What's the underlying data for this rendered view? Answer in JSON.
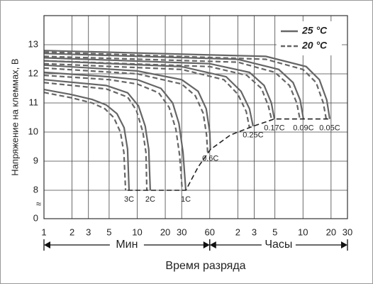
{
  "chart_data": {
    "type": "line",
    "x_label": "Время разряда",
    "y_label": "Напряжение на клеммах, В",
    "xscale": "log",
    "xlim": [
      1,
      1800
    ],
    "xticks": [
      1,
      2,
      3,
      5,
      10,
      20,
      30,
      60,
      {
        "value": 120,
        "label": "2"
      },
      {
        "value": 180,
        "label": "3"
      },
      {
        "value": 300,
        "label": "5"
      },
      {
        "value": 600,
        "label": "10"
      },
      {
        "value": 1200,
        "label": "20"
      },
      {
        "value": 1800,
        "label": "30"
      }
    ],
    "ylim": [
      0,
      14
    ],
    "yticks": [
      0,
      8,
      9,
      10,
      11,
      12,
      13
    ],
    "axis_break_label": "≈",
    "grid": true,
    "legend": "upper right",
    "x_ranges": [
      {
        "label": "Мин",
        "from": 1,
        "to": 60
      },
      {
        "label": "Часы",
        "from": 60,
        "to": 1800
      }
    ],
    "series": [
      {
        "name": "25 °C",
        "style": "solid",
        "color": "#666666",
        "curves": [
          {
            "label": "3C",
            "x": [
              1,
              1.95,
              3.29,
              4.67,
              6.07,
              7.23,
              7.89,
              8.18
            ],
            "values": [
              11.46,
              11.29,
              11.12,
              10.93,
              10.63,
              10.15,
              9.41,
              8.0
            ]
          },
          {
            "label": "2C",
            "x": [
              1,
              4.67,
              7.9,
              10.3,
              12.2,
              13.3,
              13.8
            ],
            "values": [
              11.8,
              11.6,
              11.35,
              10.9,
              10.2,
              9.4,
              8.0
            ]
          },
          {
            "label": "1C",
            "x": [
              1,
              5,
              10,
              18,
              24,
              28,
              31,
              33.2
            ],
            "values": [
              12.05,
              11.9,
              11.8,
              11.5,
              11.0,
              10.3,
              9.3,
              8.0
            ]
          },
          {
            "label": "0.6C",
            "x": [
              1,
              10,
              30,
              45,
              55,
              60,
              61
            ],
            "values": [
              12.3,
              12.1,
              11.8,
              11.4,
              10.8,
              10.0,
              9.4
            ]
          },
          {
            "label": "0.25C",
            "x": [
              1,
              30,
              90,
              130,
              160,
              175
            ],
            "values": [
              12.45,
              12.25,
              11.9,
              11.4,
              10.8,
              10.2
            ]
          },
          {
            "label": "0.17C",
            "x": [
              1,
              60,
              160,
              230,
              275,
              296
            ],
            "values": [
              12.55,
              12.35,
              12.05,
              11.6,
              11.0,
              10.45
            ]
          },
          {
            "label": "0.09C",
            "x": [
              1,
              120,
              330,
              470,
              560,
              607
            ],
            "values": [
              12.7,
              12.5,
              12.15,
              11.7,
              11.1,
              10.45
            ]
          },
          {
            "label": "0.05C",
            "x": [
              1,
              240,
              650,
              900,
              1080,
              1161
            ],
            "values": [
              12.8,
              12.6,
              12.25,
              11.8,
              11.1,
              10.45
            ]
          }
        ]
      },
      {
        "name": "20 °C",
        "style": "dashed",
        "color": "#666666",
        "curves": [
          {
            "x": [
              1,
              1.95,
              3.29,
              4.5,
              5.6,
              6.6,
              7.2,
              7.5
            ],
            "values": [
              11.36,
              11.18,
              11.0,
              10.8,
              10.5,
              10.0,
              9.3,
              8.0
            ]
          },
          {
            "x": [
              1,
              4.67,
              7.9,
              9.8,
              11.5,
              12.4,
              12.7
            ],
            "values": [
              11.7,
              11.48,
              11.2,
              10.75,
              10.0,
              9.3,
              8.0
            ]
          },
          {
            "x": [
              1,
              5,
              10,
              17,
              22,
              26,
              28.5,
              30.4
            ],
            "values": [
              11.95,
              11.8,
              11.65,
              11.35,
              10.85,
              10.1,
              9.2,
              8.0
            ]
          },
          {
            "x": [
              1,
              10,
              30,
              42,
              51,
              55.5,
              56.9
            ],
            "values": [
              12.2,
              12.0,
              11.65,
              11.25,
              10.65,
              9.9,
              9.3
            ]
          },
          {
            "x": [
              1,
              30,
              85,
              120,
              148,
              160
            ],
            "values": [
              12.35,
              12.15,
              11.8,
              11.3,
              10.7,
              10.15
            ]
          },
          {
            "x": [
              1,
              60,
              150,
              215,
              255,
              276
            ],
            "values": [
              12.45,
              12.25,
              11.95,
              11.5,
              10.9,
              10.45
            ]
          },
          {
            "x": [
              1,
              120,
              300,
              430,
              515,
              556
            ],
            "values": [
              12.6,
              12.4,
              12.05,
              11.6,
              11.0,
              10.45
            ]
          },
          {
            "x": [
              1,
              240,
              600,
              830,
              990,
              1064
            ],
            "values": [
              12.75,
              12.5,
              12.15,
              11.7,
              11.0,
              10.45
            ]
          }
        ]
      }
    ],
    "cutoff": {
      "style": "dashed",
      "color": "#222222",
      "x": [
        7.9,
        33.2,
        45,
        61,
        100,
        175,
        296,
        1161
      ],
      "values": [
        8,
        8,
        8.8,
        9.4,
        9.9,
        10.2,
        10.45,
        10.45
      ]
    }
  }
}
